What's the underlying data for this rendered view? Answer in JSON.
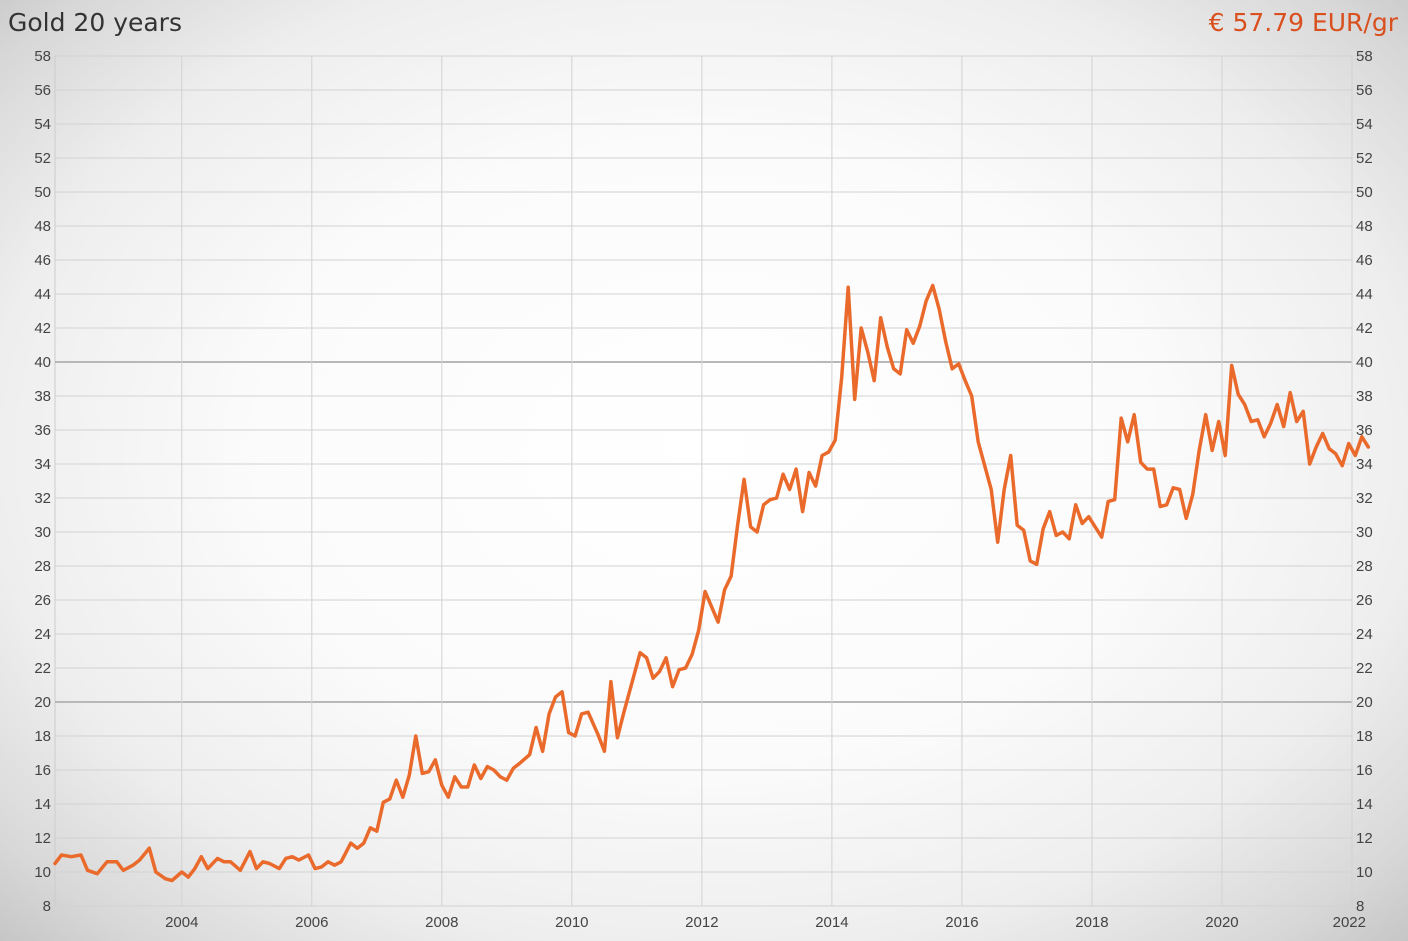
{
  "header": {
    "title": "Gold 20 years",
    "current_price": "€ 57.79 EUR/gr"
  },
  "colors": {
    "line": "#ea6a2c",
    "price": "#d9501e",
    "grid": "#d2d2d2",
    "grid_major": "#b8b8b8"
  },
  "chart_data": {
    "type": "line",
    "title": "Gold 20 years",
    "xlabel": "",
    "ylabel": "",
    "xlim": [
      2002.05,
      2022.0
    ],
    "ylim": [
      8,
      58
    ],
    "grid": true,
    "x_ticks": [
      "2004",
      "2006",
      "2008",
      "2010",
      "2012",
      "2014",
      "2016",
      "2018",
      "2020",
      "2022"
    ],
    "y_ticks": [
      "8",
      "10",
      "12",
      "14",
      "16",
      "18",
      "20",
      "22",
      "24",
      "26",
      "28",
      "30",
      "32",
      "34",
      "36",
      "38",
      "40",
      "42",
      "44",
      "46",
      "48",
      "50",
      "52",
      "54",
      "56",
      "58"
    ],
    "y_major_ticks": [
      20,
      40
    ],
    "series": [
      {
        "name": "",
        "points": [
          [
            2002.05,
            10.5
          ],
          [
            2002.15,
            11.0
          ],
          [
            2002.3,
            10.9
          ],
          [
            2002.45,
            11.0
          ],
          [
            2002.55,
            10.1
          ],
          [
            2002.7,
            9.9
          ],
          [
            2002.85,
            10.6
          ],
          [
            2003.0,
            10.6
          ],
          [
            2003.1,
            10.1
          ],
          [
            2003.25,
            10.4
          ],
          [
            2003.35,
            10.7
          ],
          [
            2003.5,
            11.4
          ],
          [
            2003.6,
            10.0
          ],
          [
            2003.75,
            9.6
          ],
          [
            2003.85,
            9.5
          ],
          [
            2004.0,
            10.0
          ],
          [
            2004.1,
            9.7
          ],
          [
            2004.2,
            10.2
          ],
          [
            2004.3,
            10.9
          ],
          [
            2004.4,
            10.2
          ],
          [
            2004.55,
            10.8
          ],
          [
            2004.65,
            10.6
          ],
          [
            2004.75,
            10.6
          ],
          [
            2004.9,
            10.1
          ],
          [
            2005.05,
            11.2
          ],
          [
            2005.15,
            10.2
          ],
          [
            2005.25,
            10.6
          ],
          [
            2005.35,
            10.5
          ],
          [
            2005.5,
            10.2
          ],
          [
            2005.6,
            10.8
          ],
          [
            2005.7,
            10.9
          ],
          [
            2005.8,
            10.7
          ],
          [
            2005.95,
            11.0
          ],
          [
            2006.05,
            10.2
          ],
          [
            2006.15,
            10.3
          ],
          [
            2006.25,
            10.6
          ],
          [
            2006.35,
            10.4
          ],
          [
            2006.45,
            10.6
          ],
          [
            2006.6,
            11.7
          ],
          [
            2006.7,
            11.4
          ],
          [
            2006.8,
            11.7
          ],
          [
            2006.9,
            12.6
          ],
          [
            2007.0,
            12.4
          ],
          [
            2007.1,
            14.1
          ],
          [
            2007.2,
            14.3
          ],
          [
            2007.3,
            15.4
          ],
          [
            2007.4,
            14.4
          ],
          [
            2007.5,
            15.7
          ],
          [
            2007.6,
            18.0
          ],
          [
            2007.7,
            15.8
          ],
          [
            2007.8,
            15.9
          ],
          [
            2007.9,
            16.6
          ],
          [
            2008.0,
            15.1
          ],
          [
            2008.1,
            14.4
          ],
          [
            2008.2,
            15.6
          ],
          [
            2008.3,
            15.0
          ],
          [
            2008.4,
            15.0
          ],
          [
            2008.5,
            16.3
          ],
          [
            2008.6,
            15.5
          ],
          [
            2008.7,
            16.2
          ],
          [
            2008.8,
            16.0
          ],
          [
            2008.9,
            15.6
          ],
          [
            2009.0,
            15.4
          ],
          [
            2009.1,
            16.1
          ],
          [
            2009.2,
            16.4
          ],
          [
            2009.35,
            16.9
          ],
          [
            2009.45,
            18.5
          ],
          [
            2009.55,
            17.1
          ],
          [
            2009.65,
            19.3
          ],
          [
            2009.75,
            20.3
          ],
          [
            2009.85,
            20.6
          ],
          [
            2009.95,
            18.2
          ],
          [
            2010.05,
            18.0
          ],
          [
            2010.15,
            19.3
          ],
          [
            2010.25,
            19.4
          ],
          [
            2010.4,
            18.1
          ],
          [
            2010.5,
            17.1
          ],
          [
            2010.6,
            21.2
          ],
          [
            2010.7,
            17.9
          ],
          [
            2010.8,
            19.4
          ],
          [
            2010.9,
            20.8
          ],
          [
            2011.05,
            22.9
          ],
          [
            2011.15,
            22.6
          ],
          [
            2011.25,
            21.4
          ],
          [
            2011.35,
            21.8
          ],
          [
            2011.45,
            22.6
          ],
          [
            2011.55,
            20.9
          ],
          [
            2011.65,
            21.9
          ],
          [
            2011.75,
            22.0
          ],
          [
            2011.85,
            22.8
          ],
          [
            2011.95,
            24.2
          ],
          [
            2012.05,
            26.5
          ],
          [
            2012.15,
            25.6
          ],
          [
            2012.25,
            24.7
          ],
          [
            2012.35,
            26.6
          ],
          [
            2012.45,
            27.4
          ],
          [
            2012.55,
            30.4
          ],
          [
            2012.65,
            33.1
          ],
          [
            2012.75,
            30.3
          ],
          [
            2012.85,
            30.0
          ],
          [
            2012.95,
            31.6
          ],
          [
            2013.05,
            31.9
          ],
          [
            2013.15,
            32.0
          ],
          [
            2013.25,
            33.4
          ],
          [
            2013.35,
            32.5
          ],
          [
            2013.45,
            33.7
          ],
          [
            2013.55,
            31.2
          ],
          [
            2013.65,
            33.5
          ],
          [
            2013.75,
            32.7
          ],
          [
            2013.85,
            34.5
          ],
          [
            2013.95,
            34.7
          ],
          [
            2014.05,
            35.4
          ],
          [
            2014.15,
            39.1
          ],
          [
            2014.25,
            44.4
          ],
          [
            2014.35,
            37.8
          ],
          [
            2014.45,
            42.0
          ],
          [
            2014.55,
            40.6
          ],
          [
            2014.65,
            38.9
          ],
          [
            2014.75,
            42.6
          ],
          [
            2014.85,
            40.9
          ],
          [
            2014.95,
            39.6
          ],
          [
            2015.05,
            39.3
          ],
          [
            2015.15,
            41.9
          ],
          [
            2015.25,
            41.1
          ],
          [
            2015.35,
            42.1
          ],
          [
            2015.45,
            43.6
          ],
          [
            2015.55,
            44.5
          ],
          [
            2015.65,
            43.1
          ],
          [
            2015.75,
            41.2
          ],
          [
            2015.85,
            39.6
          ],
          [
            2015.95,
            39.9
          ],
          [
            2016.05,
            38.9
          ],
          [
            2016.15,
            38.0
          ],
          [
            2016.25,
            35.3
          ],
          [
            2016.35,
            33.9
          ],
          [
            2016.45,
            32.5
          ],
          [
            2016.55,
            29.4
          ],
          [
            2016.65,
            32.5
          ],
          [
            2016.75,
            34.5
          ],
          [
            2016.85,
            30.4
          ],
          [
            2016.95,
            30.1
          ],
          [
            2017.05,
            28.3
          ],
          [
            2017.15,
            28.1
          ],
          [
            2017.25,
            30.2
          ],
          [
            2017.35,
            31.2
          ],
          [
            2017.45,
            29.8
          ],
          [
            2017.55,
            30.0
          ],
          [
            2017.65,
            29.6
          ],
          [
            2017.75,
            31.6
          ],
          [
            2017.85,
            30.5
          ],
          [
            2017.95,
            30.9
          ],
          [
            2018.05,
            30.3
          ],
          [
            2018.15,
            29.7
          ],
          [
            2018.25,
            31.8
          ],
          [
            2018.35,
            31.9
          ],
          [
            2018.45,
            36.7
          ],
          [
            2018.55,
            35.3
          ],
          [
            2018.65,
            36.9
          ],
          [
            2018.75,
            34.1
          ],
          [
            2018.85,
            33.7
          ],
          [
            2018.95,
            33.7
          ],
          [
            2019.05,
            31.5
          ],
          [
            2019.15,
            31.6
          ],
          [
            2019.25,
            32.6
          ],
          [
            2019.35,
            32.5
          ],
          [
            2019.45,
            30.8
          ],
          [
            2019.55,
            32.2
          ],
          [
            2019.65,
            34.8
          ],
          [
            2019.75,
            36.9
          ],
          [
            2019.85,
            34.8
          ],
          [
            2019.95,
            36.5
          ],
          [
            2020.05,
            34.5
          ],
          [
            2020.15,
            39.8
          ],
          [
            2020.25,
            38.1
          ],
          [
            2020.35,
            37.5
          ],
          [
            2020.45,
            36.5
          ],
          [
            2020.55,
            36.6
          ],
          [
            2020.65,
            35.6
          ],
          [
            2020.75,
            36.4
          ],
          [
            2020.85,
            37.5
          ],
          [
            2020.95,
            36.2
          ],
          [
            2021.05,
            38.2
          ],
          [
            2021.15,
            36.5
          ],
          [
            2021.25,
            37.1
          ],
          [
            2021.35,
            34.0
          ],
          [
            2021.45,
            35.0
          ],
          [
            2021.55,
            35.8
          ],
          [
            2021.65,
            34.9
          ],
          [
            2021.75,
            34.6
          ],
          [
            2021.85,
            33.9
          ],
          [
            2021.95,
            35.2
          ],
          [
            2022.05,
            34.5
          ],
          [
            2022.15,
            35.6
          ],
          [
            2022.25,
            35.0
          ]
        ]
      }
    ]
  }
}
